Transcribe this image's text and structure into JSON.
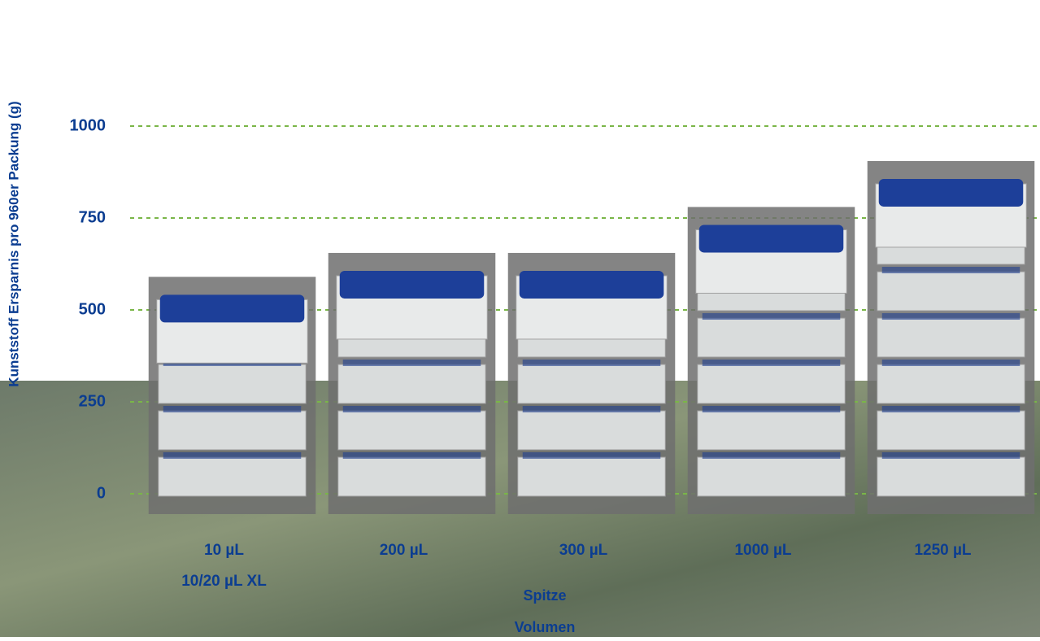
{
  "chart_data": {
    "type": "bar",
    "y_label": "Kunststoff Ersparnis pro 960er Packung (g)",
    "x_label": [
      "Spitze",
      "Volumen"
    ],
    "categories": [
      [
        "10 µL",
        "10/20 µL XL"
      ],
      [
        "200 µL"
      ],
      [
        "300 µL"
      ],
      [
        "1000 µL"
      ],
      [
        "1250 µL"
      ]
    ],
    "values": [
      590,
      655,
      655,
      780,
      905
    ],
    "color": "#6e6e6e",
    "ylim": [
      0,
      1000
    ],
    "yticks": [
      0,
      250,
      500,
      750,
      1000
    ],
    "grid": true,
    "grid_color": "#7ab648"
  }
}
